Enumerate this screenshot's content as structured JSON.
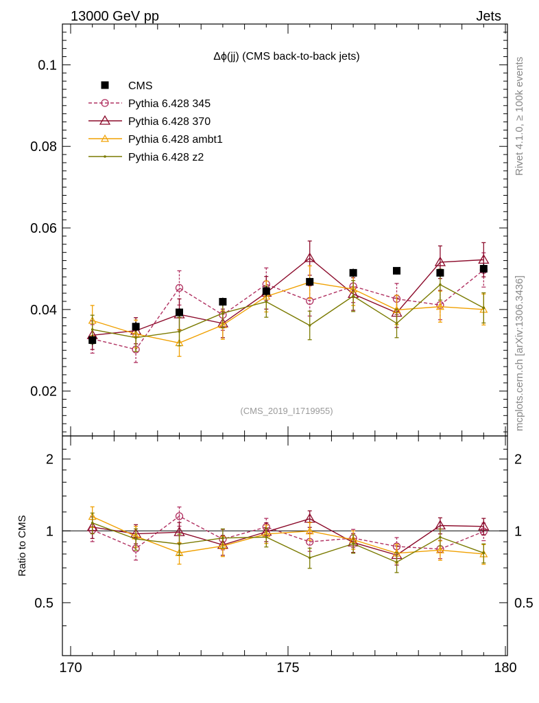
{
  "header": {
    "left": "13000 GeV pp",
    "right": "Jets"
  },
  "side_labels": {
    "rivet": "Rivet 4.1.0, ≥ 100k events",
    "mcplots": "mcplots.cern.ch [arXiv:1306.3436]"
  },
  "chart_data": {
    "type": "scatter",
    "title": "Δϕ(jj) (CMS back-to-back jets)",
    "analysis_label": "(CMS_2019_I1719955)",
    "xlabel": "",
    "ylabel": "",
    "ratio_ylabel": "Ratio to CMS",
    "xlim": [
      170,
      180
    ],
    "ylim": [
      0.009,
      0.11
    ],
    "ratio_ylim": [
      0.3,
      2.5
    ],
    "x_ticks": [
      "170",
      "175",
      "180"
    ],
    "y_ticks": [
      "0.02",
      "0.04",
      "0.06",
      "0.08",
      "0.1"
    ],
    "ratio_ticks_left": [
      "0.5",
      "1",
      "2"
    ],
    "ratio_ticks_right": [
      "0.5",
      "1",
      "2"
    ],
    "legend_position": "top-left",
    "x": [
      170.5,
      171.5,
      172.5,
      173.5,
      174.5,
      175.5,
      176.5,
      177.5,
      178.5,
      179.5
    ],
    "data": {
      "name": "CMS",
      "color": "#000000",
      "values": [
        0.0325,
        0.0358,
        0.0393,
        0.0419,
        0.0445,
        0.0468,
        0.049,
        0.0495,
        0.049,
        0.05
      ],
      "errors": [
        0.0012,
        0.0012,
        0.001,
        0.001,
        0.0012,
        0.001,
        0.001,
        0.0009,
        0.001,
        0.0012
      ]
    },
    "series": [
      {
        "name": "Pythia 6.428 345",
        "color": "#b03060",
        "dash": "5,3",
        "marker": "circle",
        "values": [
          0.0328,
          0.0302,
          0.0453,
          0.0387,
          0.0462,
          0.0421,
          0.0457,
          0.0426,
          0.0411,
          0.0497
        ],
        "errors": [
          0.0035,
          0.0032,
          0.0042,
          0.0038,
          0.004,
          0.0037,
          0.004,
          0.0038,
          0.0036,
          0.0042
        ]
      },
      {
        "name": "Pythia 6.428 370",
        "color": "#8b0a2a",
        "dash": "",
        "marker": "triangle-open",
        "values": [
          0.0337,
          0.0348,
          0.0388,
          0.0366,
          0.0441,
          0.0526,
          0.0438,
          0.0392,
          0.0516,
          0.0522
        ],
        "errors": [
          0.0035,
          0.0032,
          0.0038,
          0.0035,
          0.004,
          0.0042,
          0.004,
          0.0036,
          0.004,
          0.0042
        ]
      },
      {
        "name": "Pythia 6.428 ambt1",
        "color": "#f0a000",
        "dash": "",
        "marker": "triangle-small",
        "values": [
          0.0373,
          0.034,
          0.0318,
          0.0362,
          0.0432,
          0.0467,
          0.045,
          0.0399,
          0.0407,
          0.04
        ],
        "errors": [
          0.0037,
          0.0034,
          0.0033,
          0.0035,
          0.0038,
          0.004,
          0.004,
          0.0036,
          0.0038,
          0.0038
        ]
      },
      {
        "name": "Pythia 6.428 z2",
        "color": "#7a7a00",
        "dash": "",
        "marker": "dot",
        "values": [
          0.0351,
          0.0331,
          0.0346,
          0.0391,
          0.0419,
          0.0361,
          0.0433,
          0.0366,
          0.0461,
          0.0404
        ],
        "errors": [
          0.0035,
          0.0034,
          0.0035,
          0.0036,
          0.0038,
          0.0035,
          0.0038,
          0.0035,
          0.0038,
          0.0037
        ]
      }
    ]
  }
}
